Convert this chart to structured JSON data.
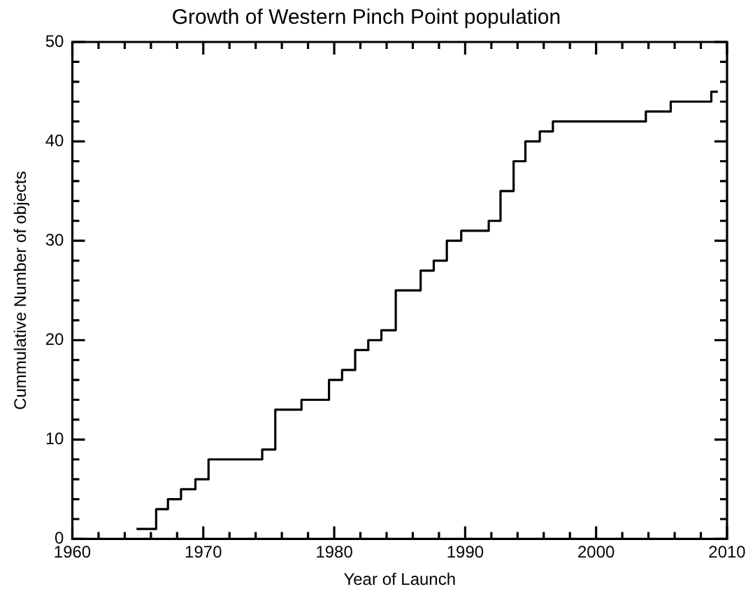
{
  "chart_data": {
    "type": "step",
    "title": "Growth of Western Pinch Point population",
    "xlabel": "Year of Launch",
    "ylabel": "Cummulative Number of objects",
    "x": [
      1964.9,
      1966.4,
      1967.3,
      1968.3,
      1969.4,
      1970.4,
      1974.5,
      1975.5,
      1977.5,
      1979.6,
      1980.6,
      1981.6,
      1982.6,
      1983.6,
      1984.7,
      1986.6,
      1987.6,
      1988.6,
      1989.7,
      1991.8,
      1992.7,
      1993.7,
      1994.6,
      1995.7,
      1996.7,
      2003.8,
      2005.7,
      2008.8,
      2009.3
    ],
    "values": [
      1,
      3,
      4,
      5,
      6,
      8,
      9,
      13,
      14,
      16,
      17,
      19,
      20,
      21,
      25,
      27,
      28,
      30,
      31,
      32,
      35,
      38,
      40,
      41,
      42,
      43,
      44,
      45,
      45
    ],
    "color": "#000000",
    "xlim": [
      1960,
      2010
    ],
    "ylim": [
      0,
      50
    ],
    "xticks": [
      1960,
      {
        "value": 1962,
        "label": null
      },
      {
        "value": 1964,
        "label": null
      },
      {
        "value": 1966,
        "label": null
      },
      {
        "value": 1968,
        "label": null
      },
      1970,
      {
        "value": 1972,
        "label": null
      },
      {
        "value": 1974,
        "label": null
      },
      {
        "value": 1976,
        "label": null
      },
      {
        "value": 1978,
        "label": null
      },
      1980,
      {
        "value": 1982,
        "label": null
      },
      {
        "value": 1984,
        "label": null
      },
      {
        "value": 1986,
        "label": null
      },
      {
        "value": 1988,
        "label": null
      },
      1990,
      {
        "value": 1992,
        "label": null
      },
      {
        "value": 1994,
        "label": null
      },
      {
        "value": 1996,
        "label": null
      },
      {
        "value": 1998,
        "label": null
      },
      2000,
      {
        "value": 2002,
        "label": null
      },
      {
        "value": 2004,
        "label": null
      },
      {
        "value": 2006,
        "label": null
      },
      {
        "value": 2008,
        "label": null
      },
      2010
    ],
    "yticks": [
      0,
      {
        "value": 2,
        "label": null
      },
      {
        "value": 4,
        "label": null
      },
      {
        "value": 6,
        "label": null
      },
      {
        "value": 8,
        "label": null
      },
      10,
      {
        "value": 12,
        "label": null
      },
      {
        "value": 14,
        "label": null
      },
      {
        "value": 16,
        "label": null
      },
      {
        "value": 18,
        "label": null
      },
      20,
      {
        "value": 22,
        "label": null
      },
      {
        "value": 24,
        "label": null
      },
      {
        "value": 26,
        "label": null
      },
      {
        "value": 28,
        "label": null
      },
      30,
      {
        "value": 32,
        "label": null
      },
      {
        "value": 34,
        "label": null
      },
      {
        "value": 36,
        "label": null
      },
      {
        "value": 38,
        "label": null
      },
      40,
      {
        "value": 42,
        "label": null
      },
      {
        "value": 44,
        "label": null
      },
      {
        "value": 46,
        "label": null
      },
      {
        "value": 48,
        "label": null
      },
      50
    ],
    "grid": false,
    "legend": false,
    "marker": "none",
    "line_style": "solid"
  }
}
